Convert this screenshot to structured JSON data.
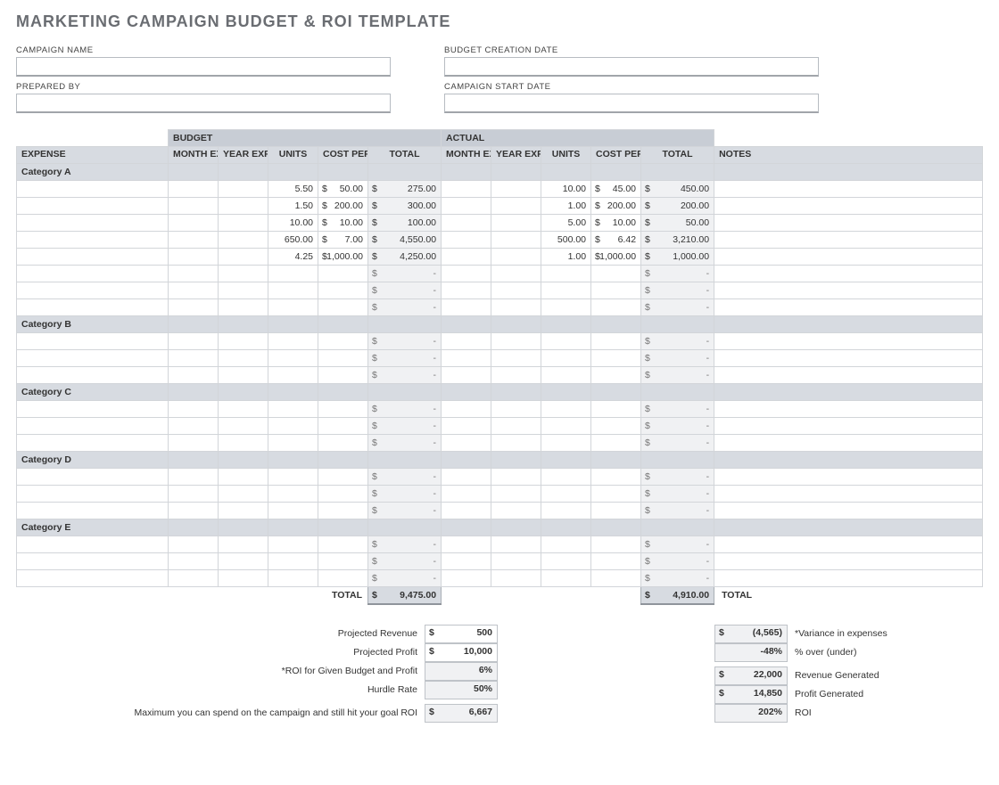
{
  "title": "MARKETING CAMPAIGN BUDGET & ROI TEMPLATE",
  "fields": {
    "campaign_name_label": "CAMPAIGN NAME",
    "campaign_name_value": "",
    "prepared_by_label": "PREPARED BY",
    "prepared_by_value": "",
    "budget_creation_date_label": "BUDGET CREATION DATE",
    "budget_creation_date_value": "",
    "campaign_start_date_label": "CAMPAIGN START DATE",
    "campaign_start_date_value": ""
  },
  "headers": {
    "budget": "BUDGET",
    "actual": "ACTUAL",
    "expense": "EXPENSE",
    "month_expended": "MONTH EXPENDED",
    "year_expended": "YEAR EXPENDED",
    "units": "UNITS",
    "cost_per_unit": "COST PER UNIT",
    "total": "TOTAL",
    "notes": "NOTES"
  },
  "categories": [
    {
      "name": "Category A",
      "rows": [
        {
          "budget": {
            "month": "",
            "year": "",
            "units": "5.50",
            "cpu": "50.00",
            "total": "275.00"
          },
          "actual": {
            "month": "",
            "year": "",
            "units": "10.00",
            "cpu": "45.00",
            "total": "450.00"
          },
          "notes": ""
        },
        {
          "budget": {
            "month": "",
            "year": "",
            "units": "1.50",
            "cpu": "200.00",
            "total": "300.00"
          },
          "actual": {
            "month": "",
            "year": "",
            "units": "1.00",
            "cpu": "200.00",
            "total": "200.00"
          },
          "notes": ""
        },
        {
          "budget": {
            "month": "",
            "year": "",
            "units": "10.00",
            "cpu": "10.00",
            "total": "100.00"
          },
          "actual": {
            "month": "",
            "year": "",
            "units": "5.00",
            "cpu": "10.00",
            "total": "50.00"
          },
          "notes": ""
        },
        {
          "budget": {
            "month": "",
            "year": "",
            "units": "650.00",
            "cpu": "7.00",
            "total": "4,550.00"
          },
          "actual": {
            "month": "",
            "year": "",
            "units": "500.00",
            "cpu": "6.42",
            "total": "3,210.00"
          },
          "notes": ""
        },
        {
          "budget": {
            "month": "",
            "year": "",
            "units": "4.25",
            "cpu": "1,000.00",
            "total": "4,250.00"
          },
          "actual": {
            "month": "",
            "year": "",
            "units": "1.00",
            "cpu": "1,000.00",
            "total": "1,000.00"
          },
          "notes": ""
        },
        {
          "budget": {
            "month": "",
            "year": "",
            "units": "",
            "cpu": "",
            "total": "-"
          },
          "actual": {
            "month": "",
            "year": "",
            "units": "",
            "cpu": "",
            "total": "-"
          },
          "notes": ""
        },
        {
          "budget": {
            "month": "",
            "year": "",
            "units": "",
            "cpu": "",
            "total": "-"
          },
          "actual": {
            "month": "",
            "year": "",
            "units": "",
            "cpu": "",
            "total": "-"
          },
          "notes": ""
        },
        {
          "budget": {
            "month": "",
            "year": "",
            "units": "",
            "cpu": "",
            "total": "-"
          },
          "actual": {
            "month": "",
            "year": "",
            "units": "",
            "cpu": "",
            "total": "-"
          },
          "notes": ""
        }
      ]
    },
    {
      "name": "Category B",
      "rows": [
        {
          "budget": {
            "month": "",
            "year": "",
            "units": "",
            "cpu": "",
            "total": "-"
          },
          "actual": {
            "month": "",
            "year": "",
            "units": "",
            "cpu": "",
            "total": "-"
          },
          "notes": ""
        },
        {
          "budget": {
            "month": "",
            "year": "",
            "units": "",
            "cpu": "",
            "total": "-"
          },
          "actual": {
            "month": "",
            "year": "",
            "units": "",
            "cpu": "",
            "total": "-"
          },
          "notes": ""
        },
        {
          "budget": {
            "month": "",
            "year": "",
            "units": "",
            "cpu": "",
            "total": "-"
          },
          "actual": {
            "month": "",
            "year": "",
            "units": "",
            "cpu": "",
            "total": "-"
          },
          "notes": ""
        }
      ]
    },
    {
      "name": "Category C",
      "rows": [
        {
          "budget": {
            "month": "",
            "year": "",
            "units": "",
            "cpu": "",
            "total": "-"
          },
          "actual": {
            "month": "",
            "year": "",
            "units": "",
            "cpu": "",
            "total": "-"
          },
          "notes": ""
        },
        {
          "budget": {
            "month": "",
            "year": "",
            "units": "",
            "cpu": "",
            "total": "-"
          },
          "actual": {
            "month": "",
            "year": "",
            "units": "",
            "cpu": "",
            "total": "-"
          },
          "notes": ""
        },
        {
          "budget": {
            "month": "",
            "year": "",
            "units": "",
            "cpu": "",
            "total": "-"
          },
          "actual": {
            "month": "",
            "year": "",
            "units": "",
            "cpu": "",
            "total": "-"
          },
          "notes": ""
        }
      ]
    },
    {
      "name": "Category D",
      "rows": [
        {
          "budget": {
            "month": "",
            "year": "",
            "units": "",
            "cpu": "",
            "total": "-"
          },
          "actual": {
            "month": "",
            "year": "",
            "units": "",
            "cpu": "",
            "total": "-"
          },
          "notes": ""
        },
        {
          "budget": {
            "month": "",
            "year": "",
            "units": "",
            "cpu": "",
            "total": "-"
          },
          "actual": {
            "month": "",
            "year": "",
            "units": "",
            "cpu": "",
            "total": "-"
          },
          "notes": ""
        },
        {
          "budget": {
            "month": "",
            "year": "",
            "units": "",
            "cpu": "",
            "total": "-"
          },
          "actual": {
            "month": "",
            "year": "",
            "units": "",
            "cpu": "",
            "total": "-"
          },
          "notes": ""
        }
      ]
    },
    {
      "name": "Category E",
      "rows": [
        {
          "budget": {
            "month": "",
            "year": "",
            "units": "",
            "cpu": "",
            "total": "-"
          },
          "actual": {
            "month": "",
            "year": "",
            "units": "",
            "cpu": "",
            "total": "-"
          },
          "notes": ""
        },
        {
          "budget": {
            "month": "",
            "year": "",
            "units": "",
            "cpu": "",
            "total": "-"
          },
          "actual": {
            "month": "",
            "year": "",
            "units": "",
            "cpu": "",
            "total": "-"
          },
          "notes": ""
        },
        {
          "budget": {
            "month": "",
            "year": "",
            "units": "",
            "cpu": "",
            "total": "-"
          },
          "actual": {
            "month": "",
            "year": "",
            "units": "",
            "cpu": "",
            "total": "-"
          },
          "notes": ""
        }
      ]
    }
  ],
  "totals": {
    "label": "TOTAL",
    "budget_total": "9,475.00",
    "actual_total": "4,910.00",
    "notes": "TOTAL"
  },
  "summary_left": [
    {
      "label": "Projected Revenue",
      "value": "500",
      "currency": true,
      "shade": false
    },
    {
      "label": "Projected Profit",
      "value": "10,000",
      "currency": true,
      "shade": false
    },
    {
      "label": "*ROI for Given Budget and Profit",
      "value": "6%",
      "currency": false,
      "shade": true
    },
    {
      "label": "Hurdle Rate",
      "value": "50%",
      "currency": false,
      "shade": true
    },
    {
      "label": "Maximum you can spend on the campaign and still hit your goal ROI",
      "value": "6,667",
      "currency": true,
      "shade": true
    }
  ],
  "summary_right": [
    {
      "value": "(4,565)",
      "currency": true,
      "label": "*Variance in expenses"
    },
    {
      "value": "-48%",
      "currency": false,
      "label": "% over (under)"
    },
    {
      "value": "22,000",
      "currency": true,
      "label": "Revenue Generated"
    },
    {
      "value": "14,850",
      "currency": true,
      "label": "Profit Generated"
    },
    {
      "value": "202%",
      "currency": false,
      "label": "ROI"
    }
  ],
  "colors": {
    "header_bg": "#c8cdd5",
    "subheader_bg": "#d7dbe1",
    "shade_bg": "#f0f1f3",
    "border": "#d2d5d9",
    "title_color": "#6a6d72"
  }
}
